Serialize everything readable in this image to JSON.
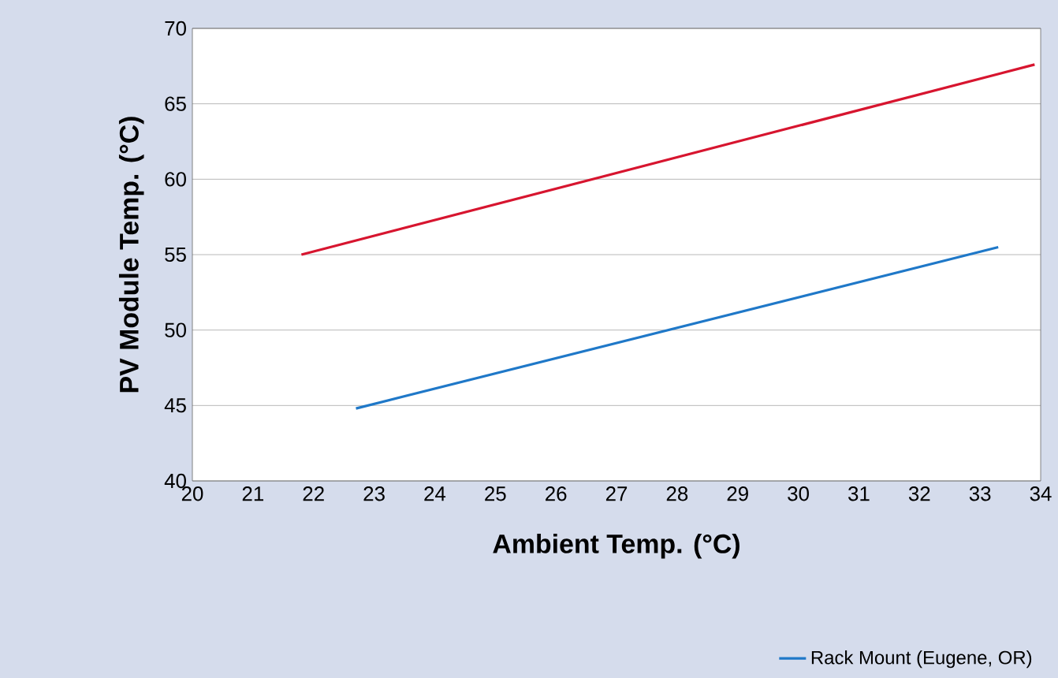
{
  "chart_data": {
    "type": "line",
    "xlabel": "Ambient Temp. (°C)",
    "ylabel": "PV Module Temp. (°C)",
    "xlim": [
      20,
      34
    ],
    "xticks": [
      20,
      21,
      22,
      23,
      24,
      25,
      26,
      27,
      28,
      29,
      30,
      31,
      32,
      33,
      34
    ],
    "ylim": [
      40,
      70
    ],
    "yticks": [
      40,
      45,
      50,
      55,
      60,
      65,
      70
    ],
    "grid": "y",
    "legend": "bottom right",
    "series": [
      {
        "color": "#d7152f",
        "x": [
          21.8,
          33.9
        ],
        "values": [
          55.0,
          67.6
        ]
      },
      {
        "name": "Rack Mount (Eugene, OR)",
        "color": "#1f78c8",
        "x": [
          22.7,
          33.3
        ],
        "values": [
          44.8,
          55.5
        ]
      }
    ]
  }
}
